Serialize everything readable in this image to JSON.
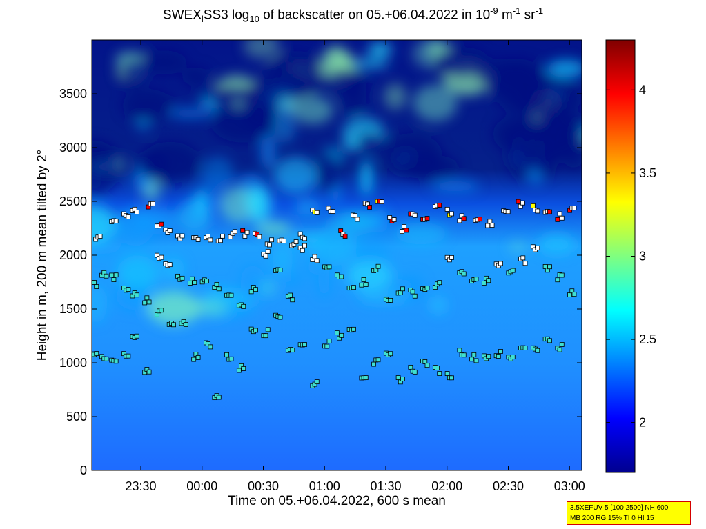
{
  "title": {
    "prefix": "SWEX",
    "sub1": "l",
    "mid1": "SS3 log",
    "sub2": "10",
    "mid2": " of backscatter on 05.+06.04.2022 in 10",
    "sup1": "-9",
    "mid3": " m",
    "sup2": "-1",
    "mid4": " sr",
    "sup3": "-1"
  },
  "info_box": {
    "line1": "3.5XEFUV 5 [100 2500] NH 600",
    "line2": "MB 200 RG 15% TI 0 HI 15"
  },
  "chart_data": {
    "type": "heatmap",
    "xlabel": "Time on 05.+06.04.2022, 600 s mean",
    "ylabel": "Height in m, 200 m mean tilted by 2°",
    "x_unit": "hours since 00:00 on 06.04.2022",
    "xlim": [
      -0.9,
      3.1
    ],
    "ylim": [
      0,
      4000
    ],
    "x_ticks": [
      -0.5,
      0,
      0.5,
      1,
      1.5,
      2,
      2.5,
      3
    ],
    "x_tick_labels": [
      "23:30",
      "00:00",
      "00:30",
      "01:00",
      "01:30",
      "02:00",
      "02:30",
      "03:00"
    ],
    "y_ticks": [
      0,
      500,
      1000,
      1500,
      2000,
      2500,
      3000,
      3500
    ],
    "y_tick_labels": [
      "0",
      "500",
      "1000",
      "1500",
      "2000",
      "2500",
      "3000",
      "3500"
    ],
    "colorbar": {
      "clim": [
        1.7,
        4.3
      ],
      "ticks": [
        2,
        2.5,
        3,
        3.5,
        4
      ],
      "tick_labels": [
        "2",
        "2.5",
        "3",
        "3.5",
        "4"
      ],
      "colormap": "jet"
    },
    "layer_markers": {
      "colors": {
        "low": "#40e0d0",
        "mid": "#ffffff",
        "high": "#ff0000",
        "peak": "#ffff00",
        "edge": "#000000"
      },
      "layers": [
        {
          "name": "upper",
          "points": [
            [
              -0.85,
              2160
            ],
            [
              -0.72,
              2300
            ],
            [
              -0.62,
              2380
            ],
            [
              -0.55,
              2420
            ],
            [
              -0.42,
              2450
            ],
            [
              -0.35,
              2300
            ],
            [
              -0.28,
              2220
            ],
            [
              -0.18,
              2180
            ],
            [
              -0.05,
              2160
            ],
            [
              0.05,
              2170
            ],
            [
              0.15,
              2150
            ],
            [
              0.25,
              2190
            ],
            [
              0.35,
              2200
            ],
            [
              0.45,
              2180
            ],
            [
              0.55,
              2120
            ],
            [
              0.65,
              2150
            ],
            [
              0.75,
              2100
            ],
            [
              0.82,
              2170
            ],
            [
              0.92,
              2420
            ],
            [
              1.05,
              2430
            ],
            [
              1.15,
              2200
            ],
            [
              1.25,
              2350
            ],
            [
              1.35,
              2460
            ],
            [
              1.45,
              2480
            ],
            [
              1.55,
              2320
            ],
            [
              1.65,
              2250
            ],
            [
              1.72,
              2400
            ],
            [
              1.82,
              2360
            ],
            [
              1.92,
              2460
            ],
            [
              2.02,
              2400
            ],
            [
              2.12,
              2350
            ],
            [
              2.25,
              2310
            ],
            [
              2.35,
              2300
            ],
            [
              2.48,
              2410
            ],
            [
              2.6,
              2480
            ],
            [
              2.72,
              2440
            ],
            [
              2.82,
              2380
            ],
            [
              2.92,
              2360
            ],
            [
              3.02,
              2430
            ]
          ]
        },
        {
          "name": "middle",
          "points": [
            [
              -0.88,
              1730
            ],
            [
              -0.8,
              1820
            ],
            [
              -0.72,
              1790
            ],
            [
              -0.62,
              1680
            ],
            [
              -0.55,
              1630
            ],
            [
              -0.45,
              1580
            ],
            [
              -0.35,
              2000
            ],
            [
              -0.28,
              1900
            ],
            [
              -0.18,
              1800
            ],
            [
              -0.08,
              1760
            ],
            [
              0.02,
              1780
            ],
            [
              0.12,
              1700
            ],
            [
              0.22,
              1650
            ],
            [
              0.32,
              1550
            ],
            [
              0.42,
              1680
            ],
            [
              0.52,
              2010
            ],
            [
              0.62,
              1850
            ],
            [
              0.72,
              1600
            ],
            [
              0.82,
              2060
            ],
            [
              0.92,
              1960
            ],
            [
              1.02,
              1880
            ],
            [
              1.12,
              1800
            ],
            [
              1.22,
              1720
            ],
            [
              1.32,
              1750
            ],
            [
              1.42,
              1880
            ],
            [
              1.52,
              1580
            ],
            [
              1.62,
              1670
            ],
            [
              1.72,
              1650
            ],
            [
              1.82,
              1690
            ],
            [
              1.92,
              1720
            ],
            [
              2.02,
              1980
            ],
            [
              2.12,
              1820
            ],
            [
              2.22,
              1760
            ],
            [
              2.32,
              1770
            ],
            [
              2.42,
              1900
            ],
            [
              2.52,
              1850
            ],
            [
              2.62,
              1950
            ],
            [
              2.72,
              2060
            ],
            [
              2.82,
              1880
            ],
            [
              2.92,
              1800
            ],
            [
              3.02,
              1660
            ]
          ]
        },
        {
          "name": "lower",
          "points": [
            [
              -0.88,
              1100
            ],
            [
              -0.8,
              1030
            ],
            [
              -0.72,
              1010
            ],
            [
              -0.62,
              1060
            ],
            [
              -0.55,
              1220
            ],
            [
              -0.45,
              930
            ],
            [
              -0.35,
              1470
            ],
            [
              -0.25,
              1380
            ],
            [
              -0.15,
              1360
            ],
            [
              -0.05,
              1060
            ],
            [
              0.05,
              1170
            ],
            [
              0.12,
              690
            ],
            [
              0.22,
              1050
            ],
            [
              0.32,
              950
            ],
            [
              0.42,
              1320
            ],
            [
              0.52,
              1280
            ],
            [
              0.62,
              1440
            ],
            [
              0.72,
              1130
            ],
            [
              0.82,
              1160
            ],
            [
              0.92,
              810
            ],
            [
              1.02,
              1180
            ],
            [
              1.12,
              1250
            ],
            [
              1.22,
              1330
            ],
            [
              1.32,
              880
            ],
            [
              1.42,
              1000
            ],
            [
              1.52,
              1060
            ],
            [
              1.62,
              850
            ],
            [
              1.72,
              940
            ],
            [
              1.82,
              1000
            ],
            [
              1.92,
              930
            ],
            [
              2.02,
              880
            ],
            [
              2.12,
              1100
            ],
            [
              2.22,
              1050
            ],
            [
              2.32,
              1060
            ],
            [
              2.42,
              1080
            ],
            [
              2.52,
              1040
            ],
            [
              2.62,
              1150
            ],
            [
              2.72,
              1140
            ],
            [
              2.82,
              1210
            ],
            [
              2.92,
              1150
            ]
          ]
        }
      ]
    }
  }
}
